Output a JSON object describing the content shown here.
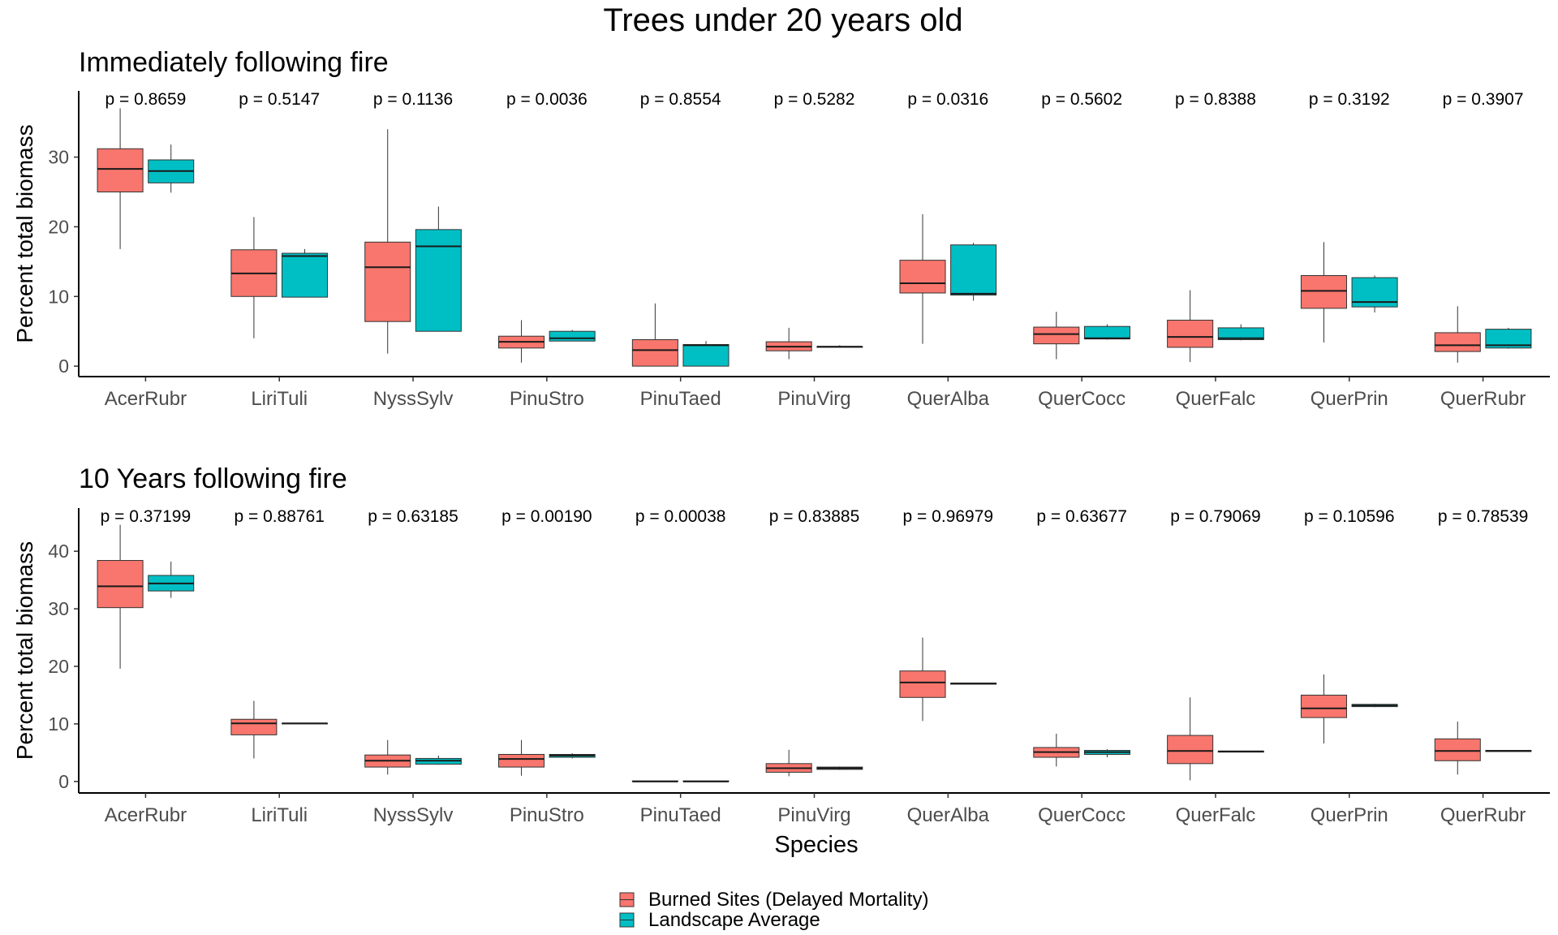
{
  "figure": {
    "title": "Trees under 20 years old",
    "xlabel": "Species",
    "legend": {
      "items": [
        {
          "label": "Burned Sites (Delayed Mortality)",
          "color": "#F8766D"
        },
        {
          "label": "Landscape Average",
          "color": "#00BFC4"
        }
      ],
      "placement": "bottom-center"
    }
  },
  "chart_data": [
    {
      "type": "box",
      "subtitle": "Immediately following fire",
      "ylabel": "Percent total biomass",
      "ylim": [
        -1.5,
        39.5
      ],
      "yticks": [
        0,
        10,
        20,
        30
      ],
      "grid": false,
      "categories": [
        "AcerRubr",
        "LiriTuli",
        "NyssSylv",
        "PinuStro",
        "PinuTaed",
        "PinuVirg",
        "QuerAlba",
        "QuerCocc",
        "QuerFalc",
        "QuerPrin",
        "QuerRubr"
      ],
      "pvalues": [
        "p = 0.8659",
        "p = 0.5147",
        "p = 0.1136",
        "p = 0.0036",
        "p = 0.8554",
        "p = 0.5282",
        "p = 0.0316",
        "p = 0.5602",
        "p = 0.8388",
        "p = 0.3192",
        "p = 0.3907"
      ],
      "series": [
        {
          "name": "Burned Sites (Delayed Mortality)",
          "color": "#F8766D",
          "boxes": [
            {
              "min": 16.8,
              "q1": 25.0,
              "median": 28.3,
              "q3": 31.2,
              "max": 37.0
            },
            {
              "min": 4.0,
              "q1": 10.0,
              "median": 13.3,
              "q3": 16.7,
              "max": 21.4
            },
            {
              "min": 1.8,
              "q1": 6.4,
              "median": 14.2,
              "q3": 17.8,
              "max": 34.0
            },
            {
              "min": 0.5,
              "q1": 2.6,
              "median": 3.5,
              "q3": 4.3,
              "max": 6.6
            },
            {
              "min": 0.0,
              "q1": 0.0,
              "median": 2.3,
              "q3": 3.8,
              "max": 9.0
            },
            {
              "min": 1.0,
              "q1": 2.2,
              "median": 2.8,
              "q3": 3.5,
              "max": 5.5
            },
            {
              "min": 3.2,
              "q1": 10.5,
              "median": 11.9,
              "q3": 15.2,
              "max": 21.8
            },
            {
              "min": 1.0,
              "q1": 3.2,
              "median": 4.6,
              "q3": 5.6,
              "max": 7.8
            },
            {
              "min": 0.6,
              "q1": 2.7,
              "median": 4.2,
              "q3": 6.6,
              "max": 10.9
            },
            {
              "min": 3.4,
              "q1": 8.3,
              "median": 10.8,
              "q3": 13.0,
              "max": 17.8
            },
            {
              "min": 0.5,
              "q1": 2.1,
              "median": 3.0,
              "q3": 4.8,
              "max": 8.6
            }
          ]
        },
        {
          "name": "Landscape Average",
          "color": "#00BFC4",
          "boxes": [
            {
              "min": 24.9,
              "q1": 26.3,
              "median": 28.0,
              "q3": 29.6,
              "max": 31.8
            },
            {
              "min": 9.9,
              "q1": 9.9,
              "median": 15.8,
              "q3": 16.2,
              "max": 16.8
            },
            {
              "min": 5.0,
              "q1": 5.0,
              "median": 17.2,
              "q3": 19.6,
              "max": 22.9
            },
            {
              "min": 3.6,
              "q1": 3.6,
              "median": 4.0,
              "q3": 5.0,
              "max": 5.2
            },
            {
              "min": 0.0,
              "q1": 0.0,
              "median": 3.0,
              "q3": 3.1,
              "max": 3.6
            },
            {
              "min": 2.7,
              "q1": 2.7,
              "median": 2.8,
              "q3": 2.8,
              "max": 3.0
            },
            {
              "min": 9.4,
              "q1": 10.2,
              "median": 10.4,
              "q3": 17.4,
              "max": 17.7
            },
            {
              "min": 3.8,
              "q1": 3.9,
              "median": 4.0,
              "q3": 5.7,
              "max": 6.0
            },
            {
              "min": 3.7,
              "q1": 3.8,
              "median": 4.0,
              "q3": 5.5,
              "max": 6.0
            },
            {
              "min": 7.7,
              "q1": 8.5,
              "median": 9.2,
              "q3": 12.7,
              "max": 13.0
            },
            {
              "min": 2.5,
              "q1": 2.6,
              "median": 3.0,
              "q3": 5.3,
              "max": 5.5
            }
          ]
        }
      ]
    },
    {
      "type": "box",
      "subtitle": "10 Years following fire",
      "ylabel": "Percent total biomass",
      "ylim": [
        -2.0,
        47.5
      ],
      "yticks": [
        0,
        10,
        20,
        30,
        40
      ],
      "grid": false,
      "categories": [
        "AcerRubr",
        "LiriTuli",
        "NyssSylv",
        "PinuStro",
        "PinuTaed",
        "PinuVirg",
        "QuerAlba",
        "QuerCocc",
        "QuerFalc",
        "QuerPrin",
        "QuerRubr"
      ],
      "pvalues": [
        "p = 0.37199",
        "p = 0.88761",
        "p = 0.63185",
        "p = 0.00190",
        "p = 0.00038",
        "p = 0.83885",
        "p = 0.96979",
        "p = 0.63677",
        "p = 0.79069",
        "p = 0.10596",
        "p = 0.78539"
      ],
      "series": [
        {
          "name": "Burned Sites (Delayed Mortality)",
          "color": "#F8766D",
          "boxes": [
            {
              "min": 19.6,
              "q1": 30.2,
              "median": 33.9,
              "q3": 38.4,
              "max": 44.6
            },
            {
              "min": 4.0,
              "q1": 8.1,
              "median": 10.1,
              "q3": 10.8,
              "max": 14.0
            },
            {
              "min": 1.2,
              "q1": 2.5,
              "median": 3.6,
              "q3": 4.6,
              "max": 7.2
            },
            {
              "min": 1.0,
              "q1": 2.5,
              "median": 3.9,
              "q3": 4.7,
              "max": 7.2
            },
            {
              "min": 0.0,
              "q1": 0.0,
              "median": 0.0,
              "q3": 0.1,
              "max": 0.1
            },
            {
              "min": 0.9,
              "q1": 1.6,
              "median": 2.3,
              "q3": 3.1,
              "max": 5.5
            },
            {
              "min": 10.5,
              "q1": 14.6,
              "median": 17.2,
              "q3": 19.2,
              "max": 25.0
            },
            {
              "min": 2.6,
              "q1": 4.2,
              "median": 5.1,
              "q3": 5.9,
              "max": 8.3
            },
            {
              "min": 0.2,
              "q1": 3.1,
              "median": 5.3,
              "q3": 8.0,
              "max": 14.6
            },
            {
              "min": 6.6,
              "q1": 11.1,
              "median": 12.7,
              "q3": 15.0,
              "max": 18.6
            },
            {
              "min": 1.2,
              "q1": 3.6,
              "median": 5.3,
              "q3": 7.4,
              "max": 10.4
            }
          ]
        },
        {
          "name": "Landscape Average",
          "color": "#00BFC4",
          "boxes": [
            {
              "min": 31.9,
              "q1": 33.1,
              "median": 34.4,
              "q3": 35.8,
              "max": 38.2
            },
            {
              "min": 10.0,
              "q1": 10.0,
              "median": 10.1,
              "q3": 10.1,
              "max": 10.2
            },
            {
              "min": 2.9,
              "q1": 3.0,
              "median": 3.6,
              "q3": 4.0,
              "max": 4.5
            },
            {
              "min": 4.0,
              "q1": 4.2,
              "median": 4.5,
              "q3": 4.7,
              "max": 4.9
            },
            {
              "min": 0.0,
              "q1": 0.0,
              "median": 0.0,
              "q3": 0.1,
              "max": 0.1
            },
            {
              "min": 2.0,
              "q1": 2.1,
              "median": 2.3,
              "q3": 2.5,
              "max": 2.6
            },
            {
              "min": 16.9,
              "q1": 16.9,
              "median": 17.0,
              "q3": 17.1,
              "max": 17.1
            },
            {
              "min": 4.2,
              "q1": 4.7,
              "median": 5.1,
              "q3": 5.4,
              "max": 5.6
            },
            {
              "min": 5.1,
              "q1": 5.1,
              "median": 5.2,
              "q3": 5.3,
              "max": 5.3
            },
            {
              "min": 12.9,
              "q1": 13.0,
              "median": 13.2,
              "q3": 13.4,
              "max": 13.5
            },
            {
              "min": 5.2,
              "q1": 5.2,
              "median": 5.3,
              "q3": 5.4,
              "max": 5.4
            }
          ]
        }
      ]
    }
  ]
}
